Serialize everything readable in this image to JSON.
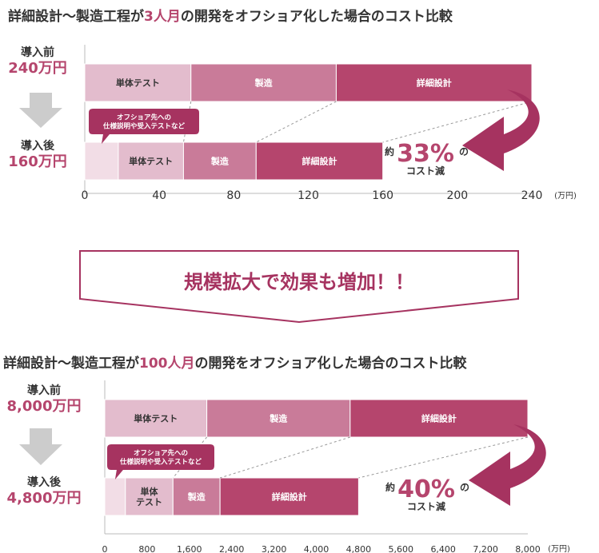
{
  "title1": {
    "pre": "詳細設計〜製造工程が",
    "hl": "3人月",
    "post": "の開発をオフショア化した場合のコスト比較"
  },
  "title2": {
    "pre": "詳細設計〜製造工程が",
    "hl": "100人月",
    "post": "の開発をオフショア化した場合のコスト比較"
  },
  "banner": "規模拡大で効果も増加！！",
  "colors": {
    "test": "#e3bccd",
    "mfg": "#c97b99",
    "design": "#b5456d",
    "offshore": "#f2dde6",
    "accent": "#b5456d",
    "arrow": "#a63360",
    "grey": "#cccccc"
  },
  "chart_data": [
    {
      "type": "bar",
      "stacked": true,
      "orientation": "horizontal",
      "unit": "(万円)",
      "xlim": [
        0,
        240
      ],
      "ticks": [
        "0",
        "40",
        "80",
        "120",
        "160",
        "200",
        "240"
      ],
      "before": {
        "caption": "導入前",
        "total_label": "240万円",
        "segments": [
          {
            "label": "単体テスト",
            "value": 57
          },
          {
            "label": "製造",
            "value": 78
          },
          {
            "label": "詳細設計",
            "value": 105
          }
        ]
      },
      "after": {
        "caption": "導入後",
        "total_label": "160万円",
        "segments": [
          {
            "label": "",
            "value": 18
          },
          {
            "label": "単体テスト",
            "value": 35
          },
          {
            "label": "製造",
            "value": 39
          },
          {
            "label": "詳細設計",
            "value": 68
          }
        ]
      },
      "callout": "オフショア先への\n仕様説明や受入テストなど",
      "reduction": {
        "prefix": "約",
        "value": "33%",
        "suffix": "の",
        "label": "コスト減"
      }
    },
    {
      "type": "bar",
      "stacked": true,
      "orientation": "horizontal",
      "unit": "(万円)",
      "xlim": [
        0,
        8000
      ],
      "ticks": [
        "0",
        "800",
        "1,600",
        "2,400",
        "3,200",
        "4,000",
        "4,800",
        "5,600",
        "6,400",
        "7,200",
        "8,000"
      ],
      "before": {
        "caption": "導入前",
        "total_label": "8,000万円",
        "segments": [
          {
            "label": "単体テスト",
            "value": 1930
          },
          {
            "label": "製造",
            "value": 2710
          },
          {
            "label": "詳細設計",
            "value": 3360
          }
        ]
      },
      "after": {
        "caption": "導入後",
        "total_label": "4,800万円",
        "segments": [
          {
            "label": "",
            "value": 390
          },
          {
            "label": "単体\nテスト",
            "value": 900
          },
          {
            "label": "製造",
            "value": 890
          },
          {
            "label": "詳細設計",
            "value": 2620
          }
        ]
      },
      "callout": "オフショア先への\n仕様説明や受入テストなど",
      "reduction": {
        "prefix": "約",
        "value": "40%",
        "suffix": "の",
        "label": "コスト減"
      }
    }
  ]
}
